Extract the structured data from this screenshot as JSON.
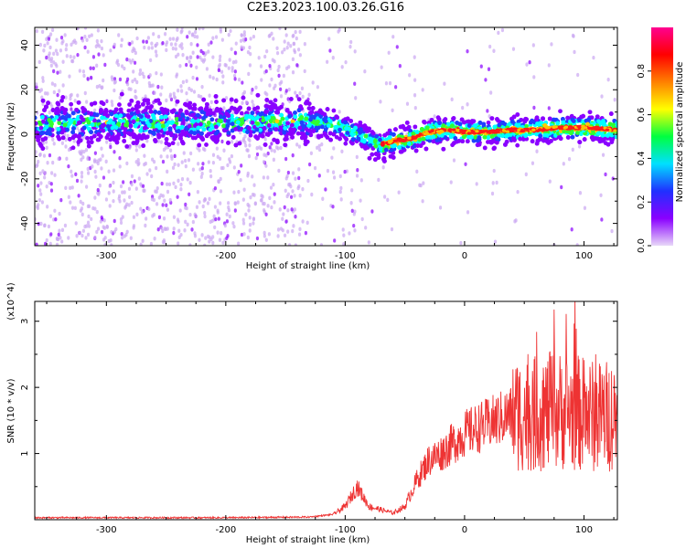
{
  "title": "C2E3.2023.100.03.26.G16",
  "chart_data": [
    {
      "type": "heatmap",
      "xlabel": "Height of straight line (km)",
      "ylabel": "Frequency (Hz)",
      "xlim": [
        -360,
        128
      ],
      "ylim": [
        -50,
        48
      ],
      "xticks": [
        -300,
        -200,
        -100,
        0,
        100
      ],
      "yticks": [
        -40,
        -20,
        0,
        20,
        40
      ],
      "colorbar": {
        "label": "Normalized spectral amplitude",
        "range": [
          0.0,
          1.0
        ],
        "ticks": [
          "0.0",
          "0.2",
          "0.4",
          "0.6",
          "0.8"
        ],
        "colors": [
          "#e8d8f8",
          "#8a00ff",
          "#2030ff",
          "#00e0ff",
          "#00ff40",
          "#ffff00",
          "#ff8000",
          "#ff0000",
          "#ff0090"
        ]
      },
      "ridge": {
        "x": [
          -360,
          -300,
          -200,
          -140,
          -120,
          -100,
          -85,
          -70,
          -60,
          -45,
          -30,
          -15,
          0,
          20,
          40,
          60,
          80,
          100,
          128
        ],
        "y": [
          5,
          5,
          5,
          6,
          5,
          3,
          -1,
          -5,
          -3,
          -2,
          1,
          2,
          1,
          1,
          2,
          2,
          3,
          3,
          2
        ]
      }
    },
    {
      "type": "line",
      "xlabel": "Height of straight line (km)",
      "ylabel": "SNR (10 * v/v)",
      "yscale_label": "(x10^4)",
      "xlim": [
        -360,
        128
      ],
      "ylim": [
        0,
        3.3
      ],
      "xticks": [
        -300,
        -200,
        -100,
        0,
        100
      ],
      "yticks": [
        1,
        2,
        3
      ],
      "color": "#ee3333",
      "envelope": {
        "x": [
          -360,
          -300,
          -200,
          -130,
          -110,
          -100,
          -90,
          -80,
          -70,
          -60,
          -50,
          -40,
          -30,
          -20,
          -10,
          0,
          20,
          40,
          60,
          80,
          100,
          110,
          128
        ],
        "y": [
          0.03,
          0.03,
          0.03,
          0.04,
          0.08,
          0.2,
          0.5,
          0.2,
          0.15,
          0.1,
          0.2,
          0.6,
          0.9,
          1.0,
          1.15,
          1.3,
          1.45,
          1.6,
          1.6,
          1.65,
          1.6,
          1.55,
          1.6
        ]
      }
    }
  ]
}
